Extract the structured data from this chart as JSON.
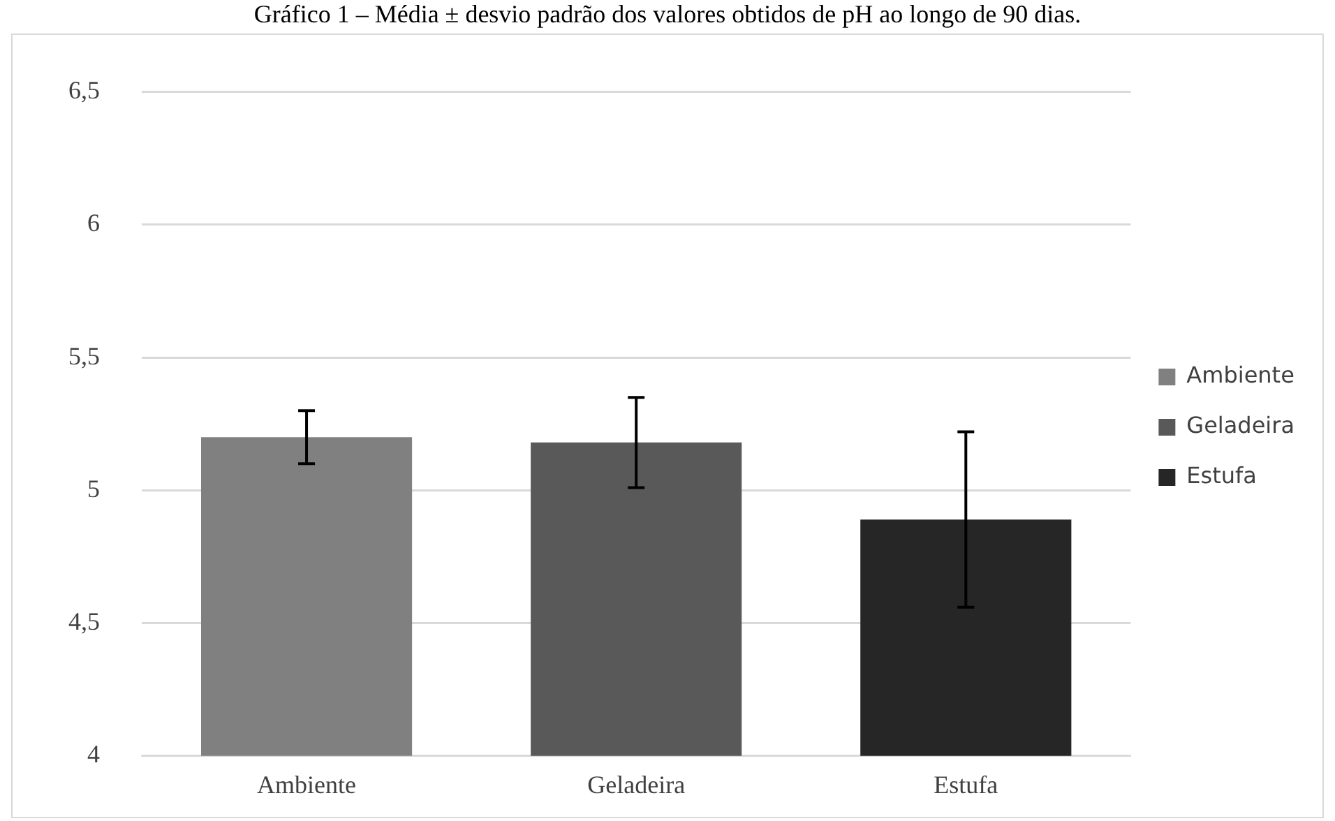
{
  "chart_data": {
    "type": "bar",
    "title": "Gráfico 1 – Média ± desvio padrão dos valores obtidos de pH ao longo de 90 dias.",
    "categories": [
      "Ambiente",
      "Geladeira",
      "Estufa"
    ],
    "series": [
      {
        "name": "Ambiente",
        "color": "#808080",
        "values": [
          5.2,
          null,
          null
        ],
        "errors": [
          0.1,
          null,
          null
        ]
      },
      {
        "name": "Geladeira",
        "color": "#595959",
        "values": [
          null,
          5.18,
          null
        ],
        "errors": [
          null,
          0.17,
          null
        ]
      },
      {
        "name": "Estufa",
        "color": "#262626",
        "values": [
          null,
          null,
          4.89
        ],
        "errors": [
          null,
          null,
          0.33
        ]
      }
    ],
    "ylim": [
      4,
      6.5
    ],
    "yticks": [
      4,
      {
        "value": 4.5,
        "label": "4,5"
      },
      5,
      {
        "value": 5.5,
        "label": "5,5"
      },
      6,
      {
        "value": 6.5,
        "label": "6,5"
      }
    ],
    "grid": "y",
    "legend": "right"
  }
}
